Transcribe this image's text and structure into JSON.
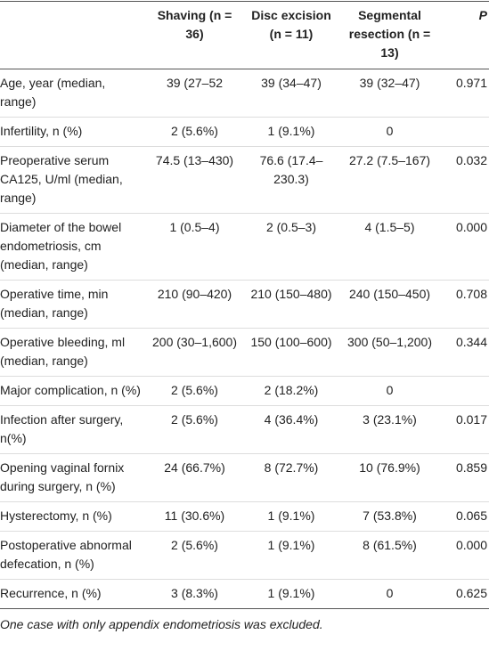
{
  "table": {
    "header": [
      "Shaving (n = 36)",
      "Disc excision (n = 11)",
      "Segmental resection (n = 13)",
      "P"
    ],
    "rows": [
      [
        "Age, year (median, range)",
        "39 (27–52",
        "39 (34–47)",
        "39 (32–47)",
        "0.971"
      ],
      [
        "Infertility, n (%)",
        "2 (5.6%)",
        "1 (9.1%)",
        "0",
        ""
      ],
      [
        "Preoperative serum CA125, U/ml (median, range)",
        "74.5 (13–430)",
        "76.6 (17.4–230.3)",
        "27.2 (7.5–167)",
        "0.032"
      ],
      [
        "Diameter of the bowel endometriosis, cm (median, range)",
        "1 (0.5–4)",
        "2 (0.5–3)",
        "4 (1.5–5)",
        "0.000"
      ],
      [
        "Operative time, min (median, range)",
        "210 (90–420)",
        "210 (150–480)",
        "240 (150–450)",
        "0.708"
      ],
      [
        "Operative bleeding, ml (median, range)",
        "200 (30–1,600)",
        "150 (100–600)",
        "300 (50–1,200)",
        "0.344"
      ],
      [
        "Major complication, n (%)",
        "2 (5.6%)",
        "2 (18.2%)",
        "0",
        ""
      ],
      [
        "Infection after surgery, n(%)",
        "2 (5.6%)",
        "4 (36.4%)",
        "3 (23.1%)",
        "0.017"
      ],
      [
        "Opening vaginal fornix during surgery, n (%)",
        "24 (66.7%)",
        "8 (72.7%)",
        "10 (76.9%)",
        "0.859"
      ],
      [
        "Hysterectomy, n (%)",
        "11 (30.6%)",
        "1 (9.1%)",
        "7 (53.8%)",
        "0.065"
      ],
      [
        "Postoperative abnormal defecation, n (%)",
        "2 (5.6%)",
        "1 (9.1%)",
        "8 (61.5%)",
        "0.000"
      ],
      [
        "Recurrence, n (%)",
        "3 (8.3%)",
        "1 (9.1%)",
        "0",
        "0.625"
      ]
    ]
  },
  "footnote": "One case with only appendix endometriosis was excluded."
}
